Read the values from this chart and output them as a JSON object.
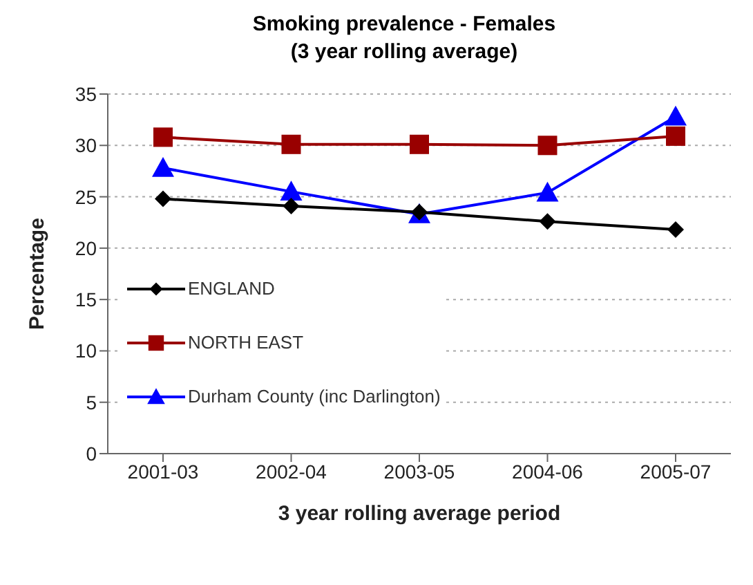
{
  "chart_data": {
    "type": "line",
    "title": "Smoking prevalence - Females",
    "subtitle": "(3 year rolling average)",
    "xlabel": "3 year rolling average period",
    "ylabel": "Percentage",
    "categories": [
      "2001-03",
      "2002-04",
      "2003-05",
      "2004-06",
      "2005-07"
    ],
    "series": [
      {
        "name": "ENGLAND",
        "color": "#000000",
        "marker": "diamond",
        "values": [
          24.8,
          24.1,
          23.5,
          22.6,
          21.8
        ]
      },
      {
        "name": "NORTH EAST",
        "color": "#990000",
        "marker": "square",
        "values": [
          30.8,
          30.1,
          30.1,
          30,
          30.9
        ]
      },
      {
        "name": "Durham County (inc Darlington)",
        "color": "#0000ff",
        "marker": "triangle",
        "values": [
          27.8,
          25.5,
          23.3,
          25.4,
          32.8
        ]
      }
    ],
    "ylim": [
      0,
      35
    ],
    "yticks": [
      0,
      5,
      10,
      15,
      20,
      25,
      30,
      35
    ],
    "grid": "y",
    "legend": "bottom left"
  }
}
